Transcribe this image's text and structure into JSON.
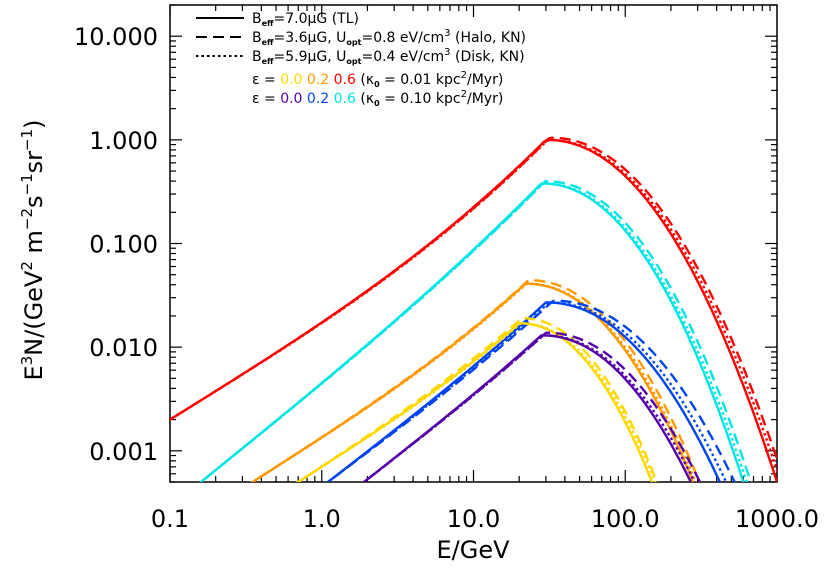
{
  "chart_data": {
    "type": "line",
    "xlabel": "E/GeV",
    "ylabel": "E^3N/(GeV^2 m^-2 s^-1 sr^-1)",
    "x_scale": "log",
    "y_scale": "log",
    "xlim": [
      0.1,
      1000.0
    ],
    "ylim": [
      0.0005,
      20.0
    ],
    "x_ticks": [
      0.1,
      1.0,
      10.0,
      100.0,
      1000.0
    ],
    "x_tick_labels": [
      "0.1",
      "1.0",
      "10.0",
      "100.0",
      "1000.0"
    ],
    "y_ticks": [
      0.001,
      0.01,
      0.1,
      1.0,
      10.0
    ],
    "y_tick_labels": [
      "0.001",
      "0.010",
      "0.100",
      "1.000",
      "10.000"
    ],
    "legend": {
      "placement": "top-left",
      "line_styles": [
        {
          "style": "solid",
          "b_sym": "B",
          "b_sub": "eff",
          "text": "=7.0μG (TL)"
        },
        {
          "style": "dashed",
          "b_sym": "B",
          "b_sub": "eff",
          "text": "=3.6μG, ",
          "u_sym": "U",
          "u_sub": "opt",
          "u_text": "=0.8 eV/cm",
          "u_sup": "3",
          "tail": " (Halo, KN)"
        },
        {
          "style": "dotted",
          "b_sym": "B",
          "b_sub": "eff",
          "text": "=5.9μG, ",
          "u_sym": "U",
          "u_sub": "opt",
          "u_text": "=0.4 eV/cm",
          "u_sup": "3",
          "tail": " (Disk, KN)"
        }
      ],
      "color_rows": [
        {
          "prefix": "ε  =",
          "values": [
            "0.0",
            "0.2",
            "0.6"
          ],
          "colors": [
            "#ffd800",
            "#ff9900",
            "#ff0000"
          ],
          "kappa": "(κ",
          "kappa_sub": "0",
          "kappa_text": " = 0.01 kpc",
          "kappa_sup": "2",
          "kappa_tail": "/Myr)"
        },
        {
          "prefix": "ε  =",
          "values": [
            "0.0",
            "0.2",
            "0.6"
          ],
          "colors": [
            "#5500aa",
            "#0044ee",
            "#00e5e5"
          ],
          "kappa": "(κ",
          "kappa_sub": "0",
          "kappa_text": " = 0.10 kpc",
          "kappa_sup": "2",
          "kappa_tail": "/Myr)"
        }
      ]
    },
    "series": [
      {
        "color": "#ff0000",
        "x": [
          0.1,
          30,
          1000
        ],
        "y": [
          0.002,
          1.0,
          0.0005
        ],
        "low_slope": 1.8,
        "high_decay": 3.8,
        "dash_shift": 1.12,
        "dash_boost": 1.05,
        "dot_shift": 1.06
      },
      {
        "color": "#00e5e5",
        "x": [
          0.16,
          28,
          600
        ],
        "y": [
          0.0005,
          0.38,
          0.0005
        ],
        "low_slope": 1.62,
        "high_decay": 3.7,
        "dash_shift": 1.12,
        "dash_boost": 1.05,
        "dot_shift": 1.05
      },
      {
        "color": "#ff9900",
        "x": [
          0.35,
          22,
          280
        ],
        "y": [
          0.0005,
          0.041,
          0.0005
        ],
        "low_slope": 1.55,
        "high_decay": 3.5,
        "dash_shift": 1.1,
        "dash_boost": 1.08,
        "dot_shift": 1.04
      },
      {
        "color": "#0044ee",
        "x": [
          1.1,
          30,
          420
        ],
        "y": [
          0.0005,
          0.027,
          0.0005
        ],
        "low_slope": 1.45,
        "high_decay": 3.7,
        "dash_shift": 1.25,
        "dash_boost": 1.04,
        "dot_shift": 1.1
      },
      {
        "color": "#ffd800",
        "x": [
          0.7,
          20,
          150
        ],
        "y": [
          0.0005,
          0.017,
          0.0005
        ],
        "low_slope": 1.45,
        "high_decay": 3.4,
        "dash_shift": 1.08,
        "dash_boost": 1.12,
        "dot_shift": 1.05
      },
      {
        "color": "#5500aa",
        "x": [
          1.9,
          28,
          270
        ],
        "y": [
          0.0005,
          0.013,
          0.0005
        ],
        "low_slope": 1.4,
        "high_decay": 3.6,
        "dash_shift": 1.15,
        "dash_boost": 1.06,
        "dot_shift": 1.06
      }
    ]
  }
}
